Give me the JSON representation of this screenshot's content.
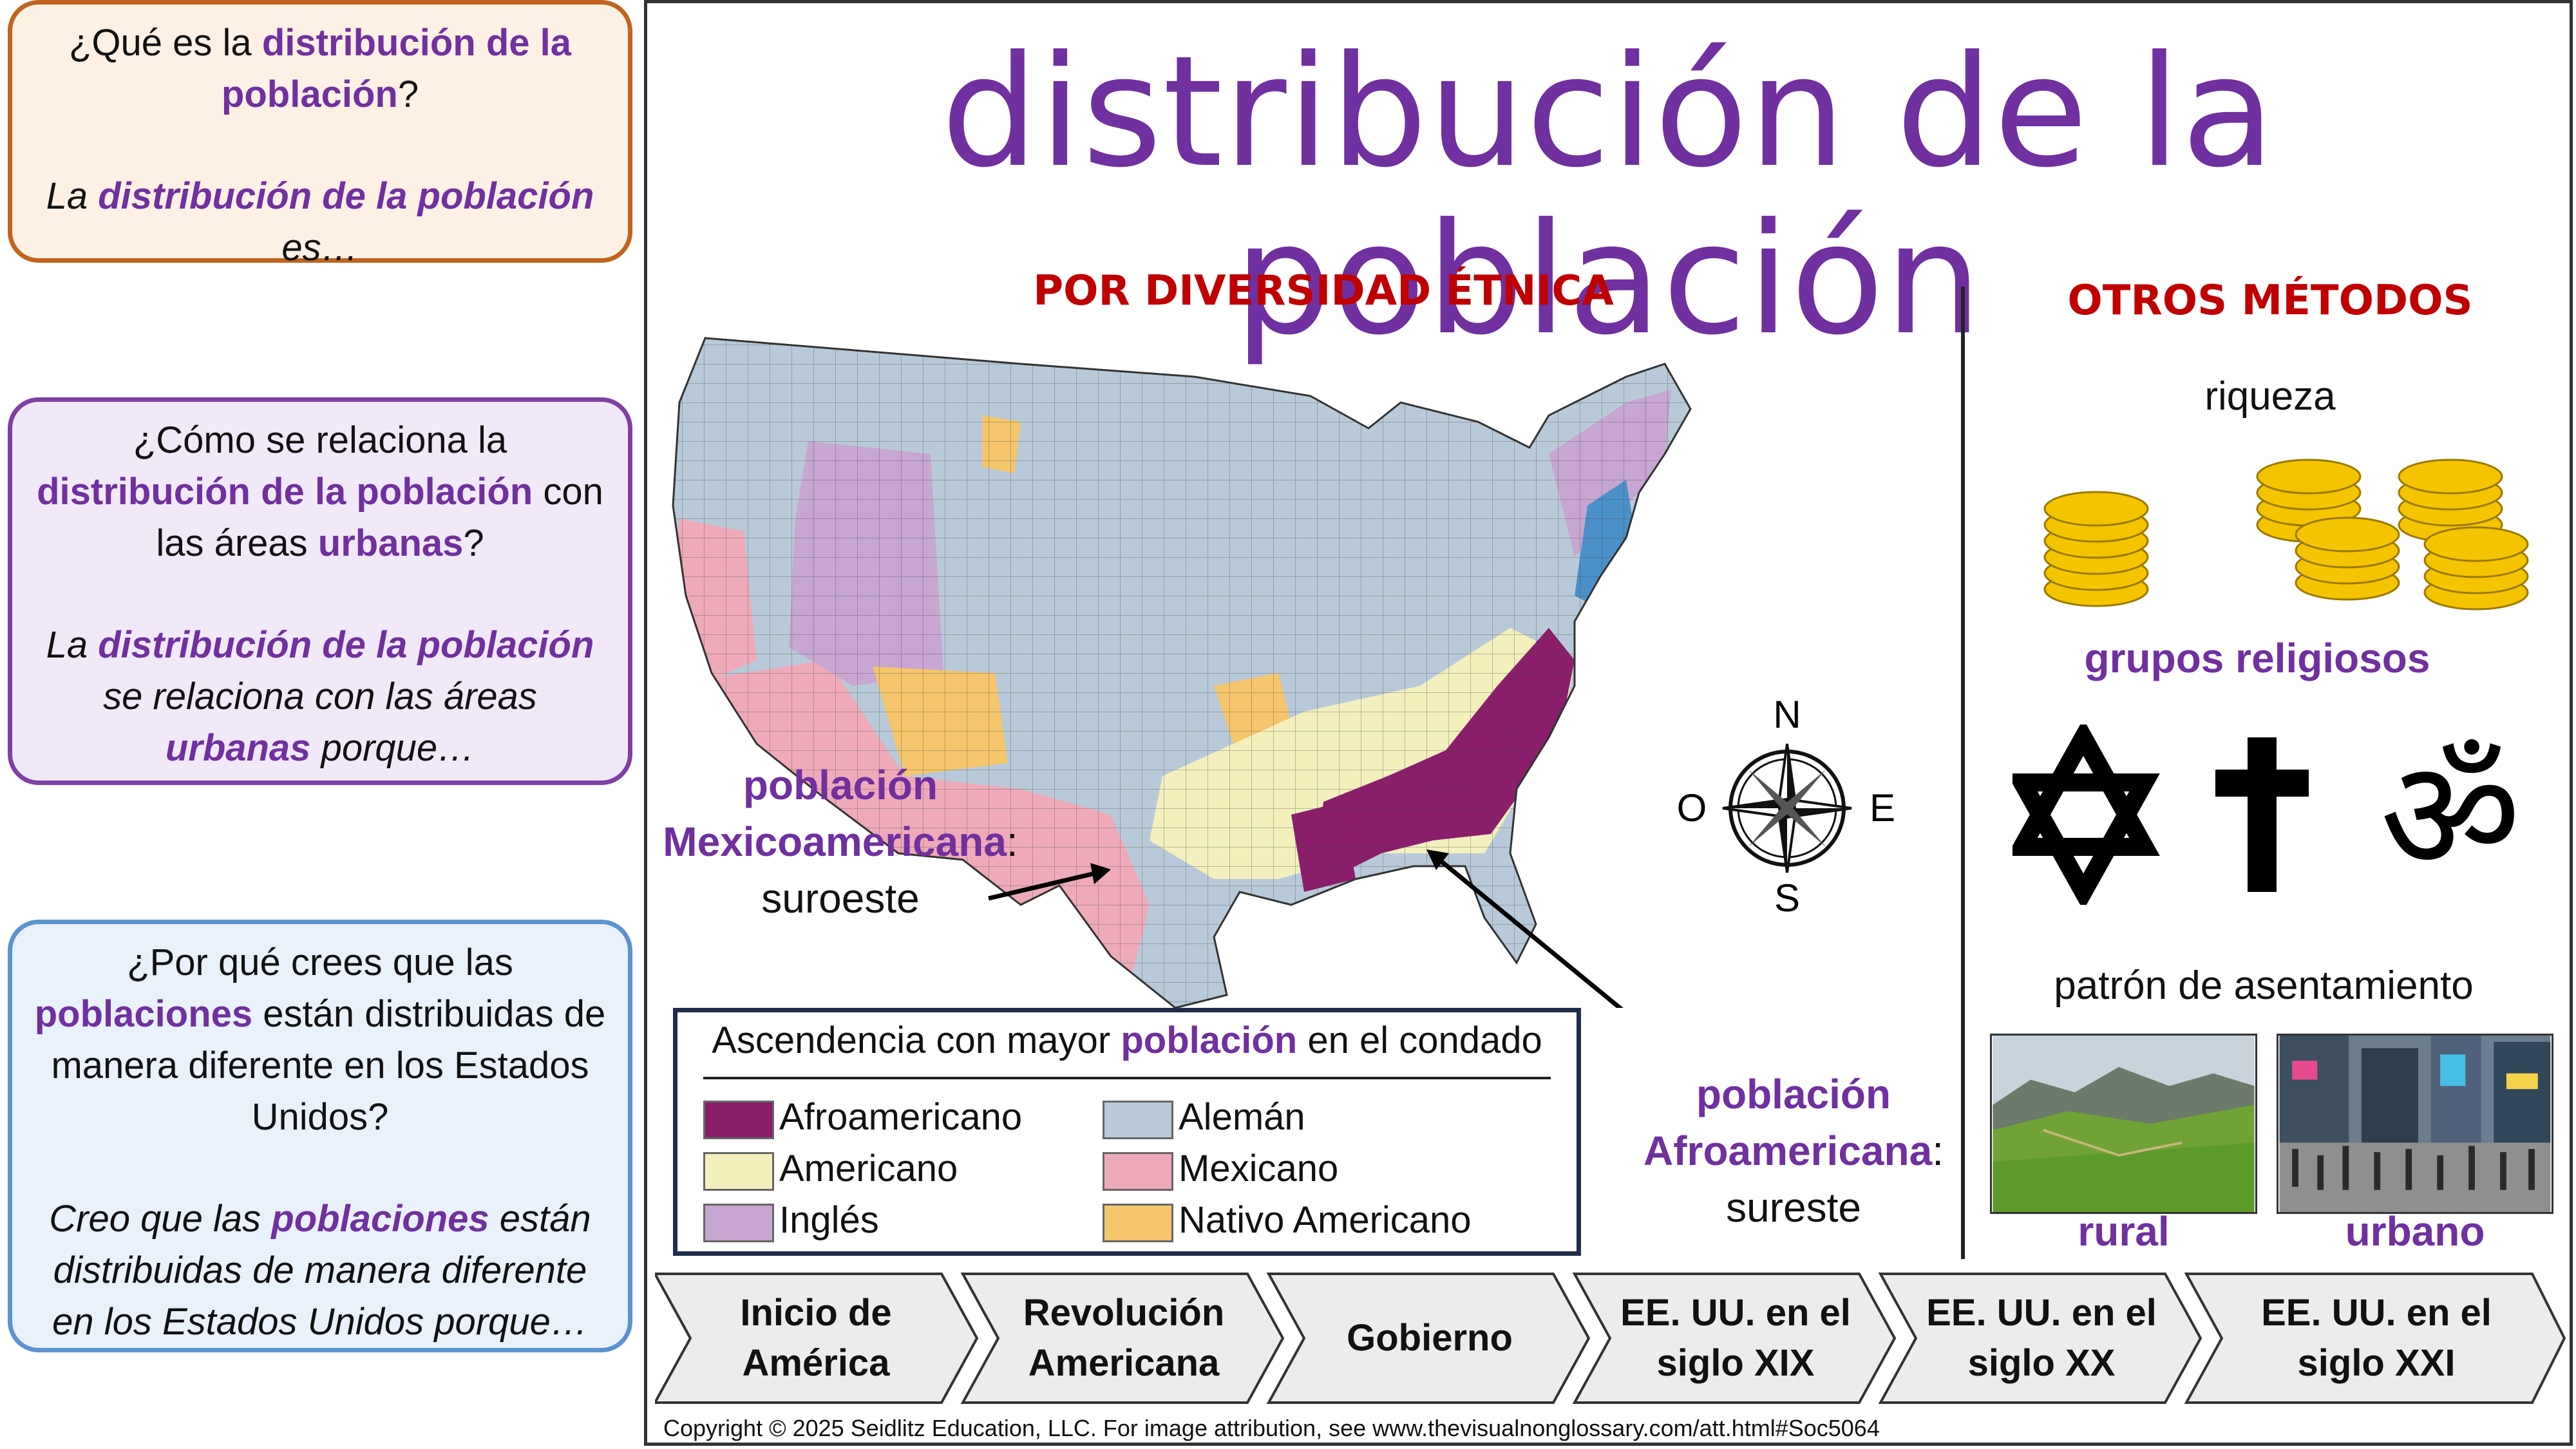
{
  "cards": {
    "q1": {
      "pre": "¿Qué es la ",
      "term": "distribución de la población",
      "post": "?"
    },
    "a1": {
      "pre": "La ",
      "term": "distribución de la población",
      "post": " es…"
    },
    "q2": {
      "pre": "¿Cómo se relaciona la ",
      "term1": "distribución de la población",
      "mid": " con las áreas ",
      "term2": "urbanas",
      "post": "?"
    },
    "a2": {
      "pre": "La ",
      "term1": "distribución de la población",
      "mid": " se relaciona con las áreas ",
      "term2": "urbanas",
      "post": " porque…"
    },
    "q3": {
      "pre": "¿Por qué crees que las ",
      "term": "poblaciones",
      "post": " están distribuidas de manera diferente en los Estados Unidos?"
    },
    "a3": {
      "pre": "Creo que las ",
      "term": "poblaciones",
      "post": " están distribuidas de manera diferente en los Estados Unidos porque…"
    }
  },
  "title": "distribución de la población",
  "ethnic_section": {
    "heading": "POR DIVERSIDAD ÉTNICA",
    "note_mex": {
      "line1": "población",
      "line2": "Mexicoamericana",
      "colon": ":",
      "line3": "suroeste"
    },
    "note_afro": {
      "line1": "población",
      "line2": "Afroamericana",
      "colon": ":",
      "line3": "sureste"
    },
    "compass": {
      "n": "N",
      "s": "S",
      "e": "E",
      "w": "O"
    },
    "legend": {
      "title_pre": "Ascendencia con mayor ",
      "title_term": "población",
      "title_post": " en el condado",
      "items": [
        {
          "label": "Afroamericano",
          "color": "#8b1e6b"
        },
        {
          "label": "Americano",
          "color": "#f3f0bd"
        },
        {
          "label": "Inglés",
          "color": "#c7a6d1"
        },
        {
          "label": "Alemán",
          "color": "#b8cad9"
        },
        {
          "label": "Mexicano",
          "color": "#eeaab8"
        },
        {
          "label": "Nativo Americano",
          "color": "#f5c66b"
        }
      ]
    }
  },
  "other_section": {
    "heading": "OTROS MÉTODOS",
    "wealth": "riqueza",
    "religion": "grupos religiosos",
    "settlement": "patrón de asentamiento",
    "rural": "rural",
    "urban": "urbano"
  },
  "timeline": [
    "Inicio de América",
    "Revolución Americana",
    "Gobierno",
    "EE. UU. en el siglo XIX",
    "EE. UU. en el siglo XX",
    "EE. UU. en el siglo XXI"
  ],
  "copyright": "Copyright © 2025 Seidlitz Education, LLC.  For image attribution, see www.thevisualnonglossary.com/att.html#Soc5064",
  "colors": {
    "accent_purple": "#7030a0",
    "heading_red": "#c00000"
  }
}
